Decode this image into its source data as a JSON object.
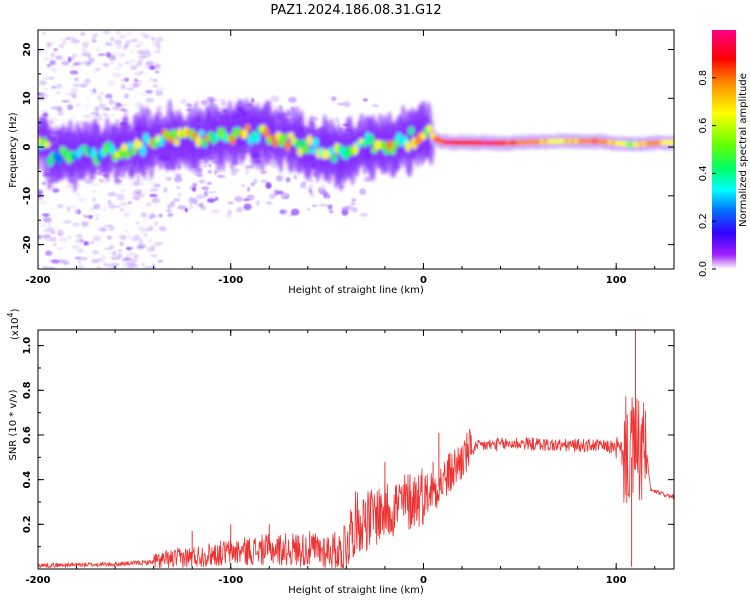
{
  "figure_title": "PAZ1.2024.186.08.31.G12",
  "chart_data": [
    {
      "type": "heatmap",
      "xlabel": "Height of straight line (km)",
      "ylabel": "Frequency (Hz)",
      "xlim": [
        -200,
        130
      ],
      "ylim": [
        -25,
        24
      ],
      "x_ticks": [
        "-200",
        "-100",
        "0",
        "100"
      ],
      "y_ticks": [
        "-20",
        "-10",
        "0",
        "10",
        "20"
      ],
      "colorbar": {
        "label": "Normalized spectral amplitude",
        "range": [
          0,
          1
        ],
        "ticks": [
          "0.0",
          "0.2",
          "0.4",
          "0.6",
          "0.8"
        ],
        "colors": [
          "#ffffff",
          "#9f1fff",
          "#3300ff",
          "#0077ff",
          "#00ffff",
          "#00ff66",
          "#66ff00",
          "#ffff00",
          "#ff8800",
          "#ff0000",
          "#ff0088"
        ]
      },
      "ridge": [
        {
          "x": -195,
          "y": -2.5,
          "v": 0.35
        },
        {
          "x": -180,
          "y": -1.5,
          "v": 0.4
        },
        {
          "x": -165,
          "y": -1.0,
          "v": 0.4
        },
        {
          "x": -150,
          "y": 0.0,
          "v": 0.5
        },
        {
          "x": -135,
          "y": 1.5,
          "v": 0.55
        },
        {
          "x": -120,
          "y": 2.0,
          "v": 0.6
        },
        {
          "x": -105,
          "y": 2.5,
          "v": 0.6
        },
        {
          "x": -90,
          "y": 3.0,
          "v": 0.6
        },
        {
          "x": -75,
          "y": 1.5,
          "v": 0.55
        },
        {
          "x": -60,
          "y": 0.0,
          "v": 0.5
        },
        {
          "x": -45,
          "y": -1.5,
          "v": 0.5
        },
        {
          "x": -30,
          "y": 0.5,
          "v": 0.5
        },
        {
          "x": -15,
          "y": 0.5,
          "v": 0.55
        },
        {
          "x": 0,
          "y": 3.0,
          "v": 0.6
        },
        {
          "x": 10,
          "y": 1.0,
          "v": 0.85
        },
        {
          "x": 40,
          "y": 0.8,
          "v": 0.9
        },
        {
          "x": 70,
          "y": 1.2,
          "v": 0.6
        },
        {
          "x": 90,
          "y": 1.2,
          "v": 0.8
        },
        {
          "x": 108,
          "y": 0.5,
          "v": 0.5
        },
        {
          "x": 120,
          "y": 0.8,
          "v": 0.8
        },
        {
          "x": 130,
          "y": 1.0,
          "v": 0.5
        }
      ]
    },
    {
      "type": "line",
      "xlabel": "Height of straight line (km)",
      "ylabel": "SNR (10 * v/v)",
      "y_scale_label": "(x10",
      "y_scale_exp": "4",
      "y_scale_close": ")",
      "xlim": [
        -200,
        130
      ],
      "ylim": [
        0,
        1.07
      ],
      "x_ticks": [
        "-200",
        "-100",
        "0",
        "100"
      ],
      "y_ticks": [
        "0.2",
        "0.4",
        "0.6",
        "0.8",
        "1.0"
      ],
      "series": [
        {
          "color": "#ee3333",
          "baseline": [
            [
              -200,
              0.015
            ],
            [
              -160,
              0.02
            ],
            [
              -140,
              0.03
            ],
            [
              -120,
              0.05
            ],
            [
              -100,
              0.07
            ],
            [
              -80,
              0.08
            ],
            [
              -60,
              0.08
            ],
            [
              -42,
              0.07
            ],
            [
              -35,
              0.2
            ],
            [
              -30,
              0.2
            ],
            [
              -20,
              0.25
            ],
            [
              -10,
              0.28
            ],
            [
              0,
              0.32
            ],
            [
              10,
              0.38
            ],
            [
              20,
              0.48
            ],
            [
              25,
              0.53
            ],
            [
              30,
              0.55
            ],
            [
              50,
              0.56
            ],
            [
              70,
              0.55
            ],
            [
              90,
              0.55
            ],
            [
              100,
              0.54
            ],
            [
              104,
              0.5
            ],
            [
              110,
              0.5
            ],
            [
              116,
              0.5
            ],
            [
              118,
              0.35
            ],
            [
              130,
              0.32
            ]
          ],
          "spikes": [
            {
              "x": -120,
              "y": 0.17
            },
            {
              "x": -100,
              "y": 0.2
            },
            {
              "x": -80,
              "y": 0.2
            },
            {
              "x": -30,
              "y": 0.3
            },
            {
              "x": -20,
              "y": 0.48
            },
            {
              "x": 5,
              "y": 0.48
            },
            {
              "x": 8,
              "y": 0.61
            },
            {
              "x": 108,
              "y": 0.01
            },
            {
              "x": 110,
              "y": 1.07
            },
            {
              "x": 113,
              "y": 0.58
            }
          ]
        }
      ]
    }
  ]
}
